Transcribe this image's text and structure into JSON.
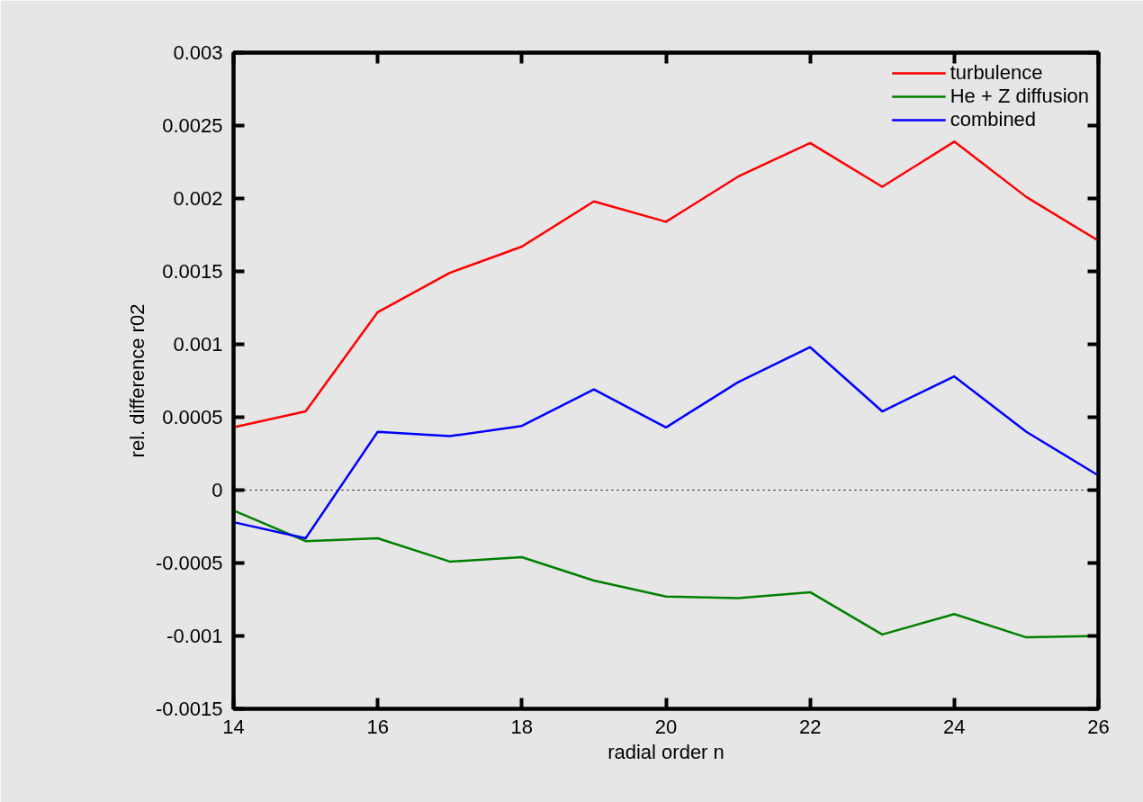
{
  "chart_data": {
    "type": "line",
    "xlabel": "radial order n",
    "ylabel": "rel. difference r02",
    "x": [
      14,
      15,
      16,
      17,
      18,
      19,
      20,
      21,
      22,
      23,
      24,
      25,
      26
    ],
    "series": [
      {
        "name": "turbulence",
        "color": "#ff0000",
        "values": [
          0.00043,
          0.00054,
          0.00122,
          0.00149,
          0.00167,
          0.00198,
          0.00184,
          0.00215,
          0.00238,
          0.00208,
          0.00239,
          0.00201,
          0.00171
        ]
      },
      {
        "name": "He + Z diffusion",
        "color": "#008000",
        "values": [
          -0.00014,
          -0.00035,
          -0.00033,
          -0.00049,
          -0.00046,
          -0.00062,
          -0.00073,
          -0.00074,
          -0.0007,
          -0.00099,
          -0.00085,
          -0.00101,
          -0.001
        ]
      },
      {
        "name": "combined",
        "color": "#0000ff",
        "values": [
          -0.00022,
          -0.00033,
          0.0004,
          0.00037,
          0.00044,
          0.00069,
          0.00043,
          0.00074,
          0.00098,
          0.00054,
          0.00078,
          0.0004,
          0.0001
        ]
      }
    ],
    "xlim": [
      14,
      26
    ],
    "xticks": [
      14,
      16,
      18,
      20,
      22,
      24,
      26
    ],
    "ylim": [
      -0.0015,
      0.003
    ],
    "yticks": [
      -0.0015,
      -0.001,
      -0.0005,
      0,
      0.0005,
      0.001,
      0.0015,
      0.002,
      0.0025,
      0.003
    ],
    "ref_lines": [
      {
        "axis": "y",
        "value": 0,
        "color": "#000000",
        "line_style": "dotted"
      }
    ],
    "legend": "top right",
    "line_style": "solid",
    "marker": "none"
  }
}
